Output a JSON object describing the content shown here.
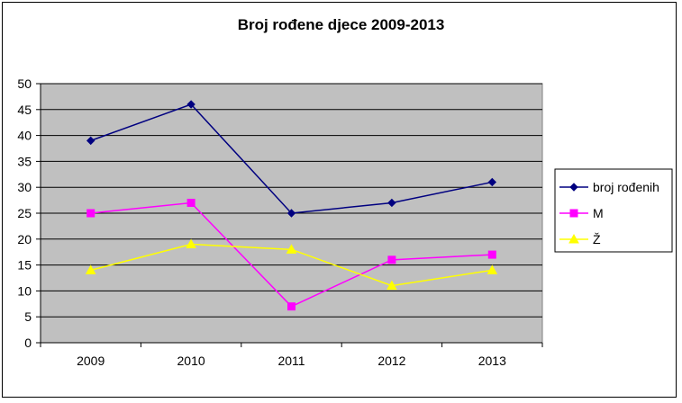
{
  "chart_data": {
    "type": "line",
    "title": "Broj rođene djece 2009-2013",
    "categories": [
      "2009",
      "2010",
      "2011",
      "2012",
      "2013"
    ],
    "ylim": [
      0,
      50
    ],
    "yticks": [
      0,
      5,
      10,
      15,
      20,
      25,
      30,
      35,
      40,
      45,
      50
    ],
    "grid": true,
    "legend_position": "right",
    "plot_background": "#c0c0c0",
    "series": [
      {
        "name": "broj rođenih",
        "color": "#000080",
        "marker": "diamond",
        "values": [
          39,
          46,
          25,
          27,
          31
        ]
      },
      {
        "name": "M",
        "color": "#ff00ff",
        "marker": "square",
        "values": [
          25,
          27,
          7,
          16,
          17
        ]
      },
      {
        "name": "Ž",
        "color": "#ffff00",
        "marker": "triangle",
        "values": [
          14,
          19,
          18,
          11,
          14
        ]
      }
    ]
  }
}
